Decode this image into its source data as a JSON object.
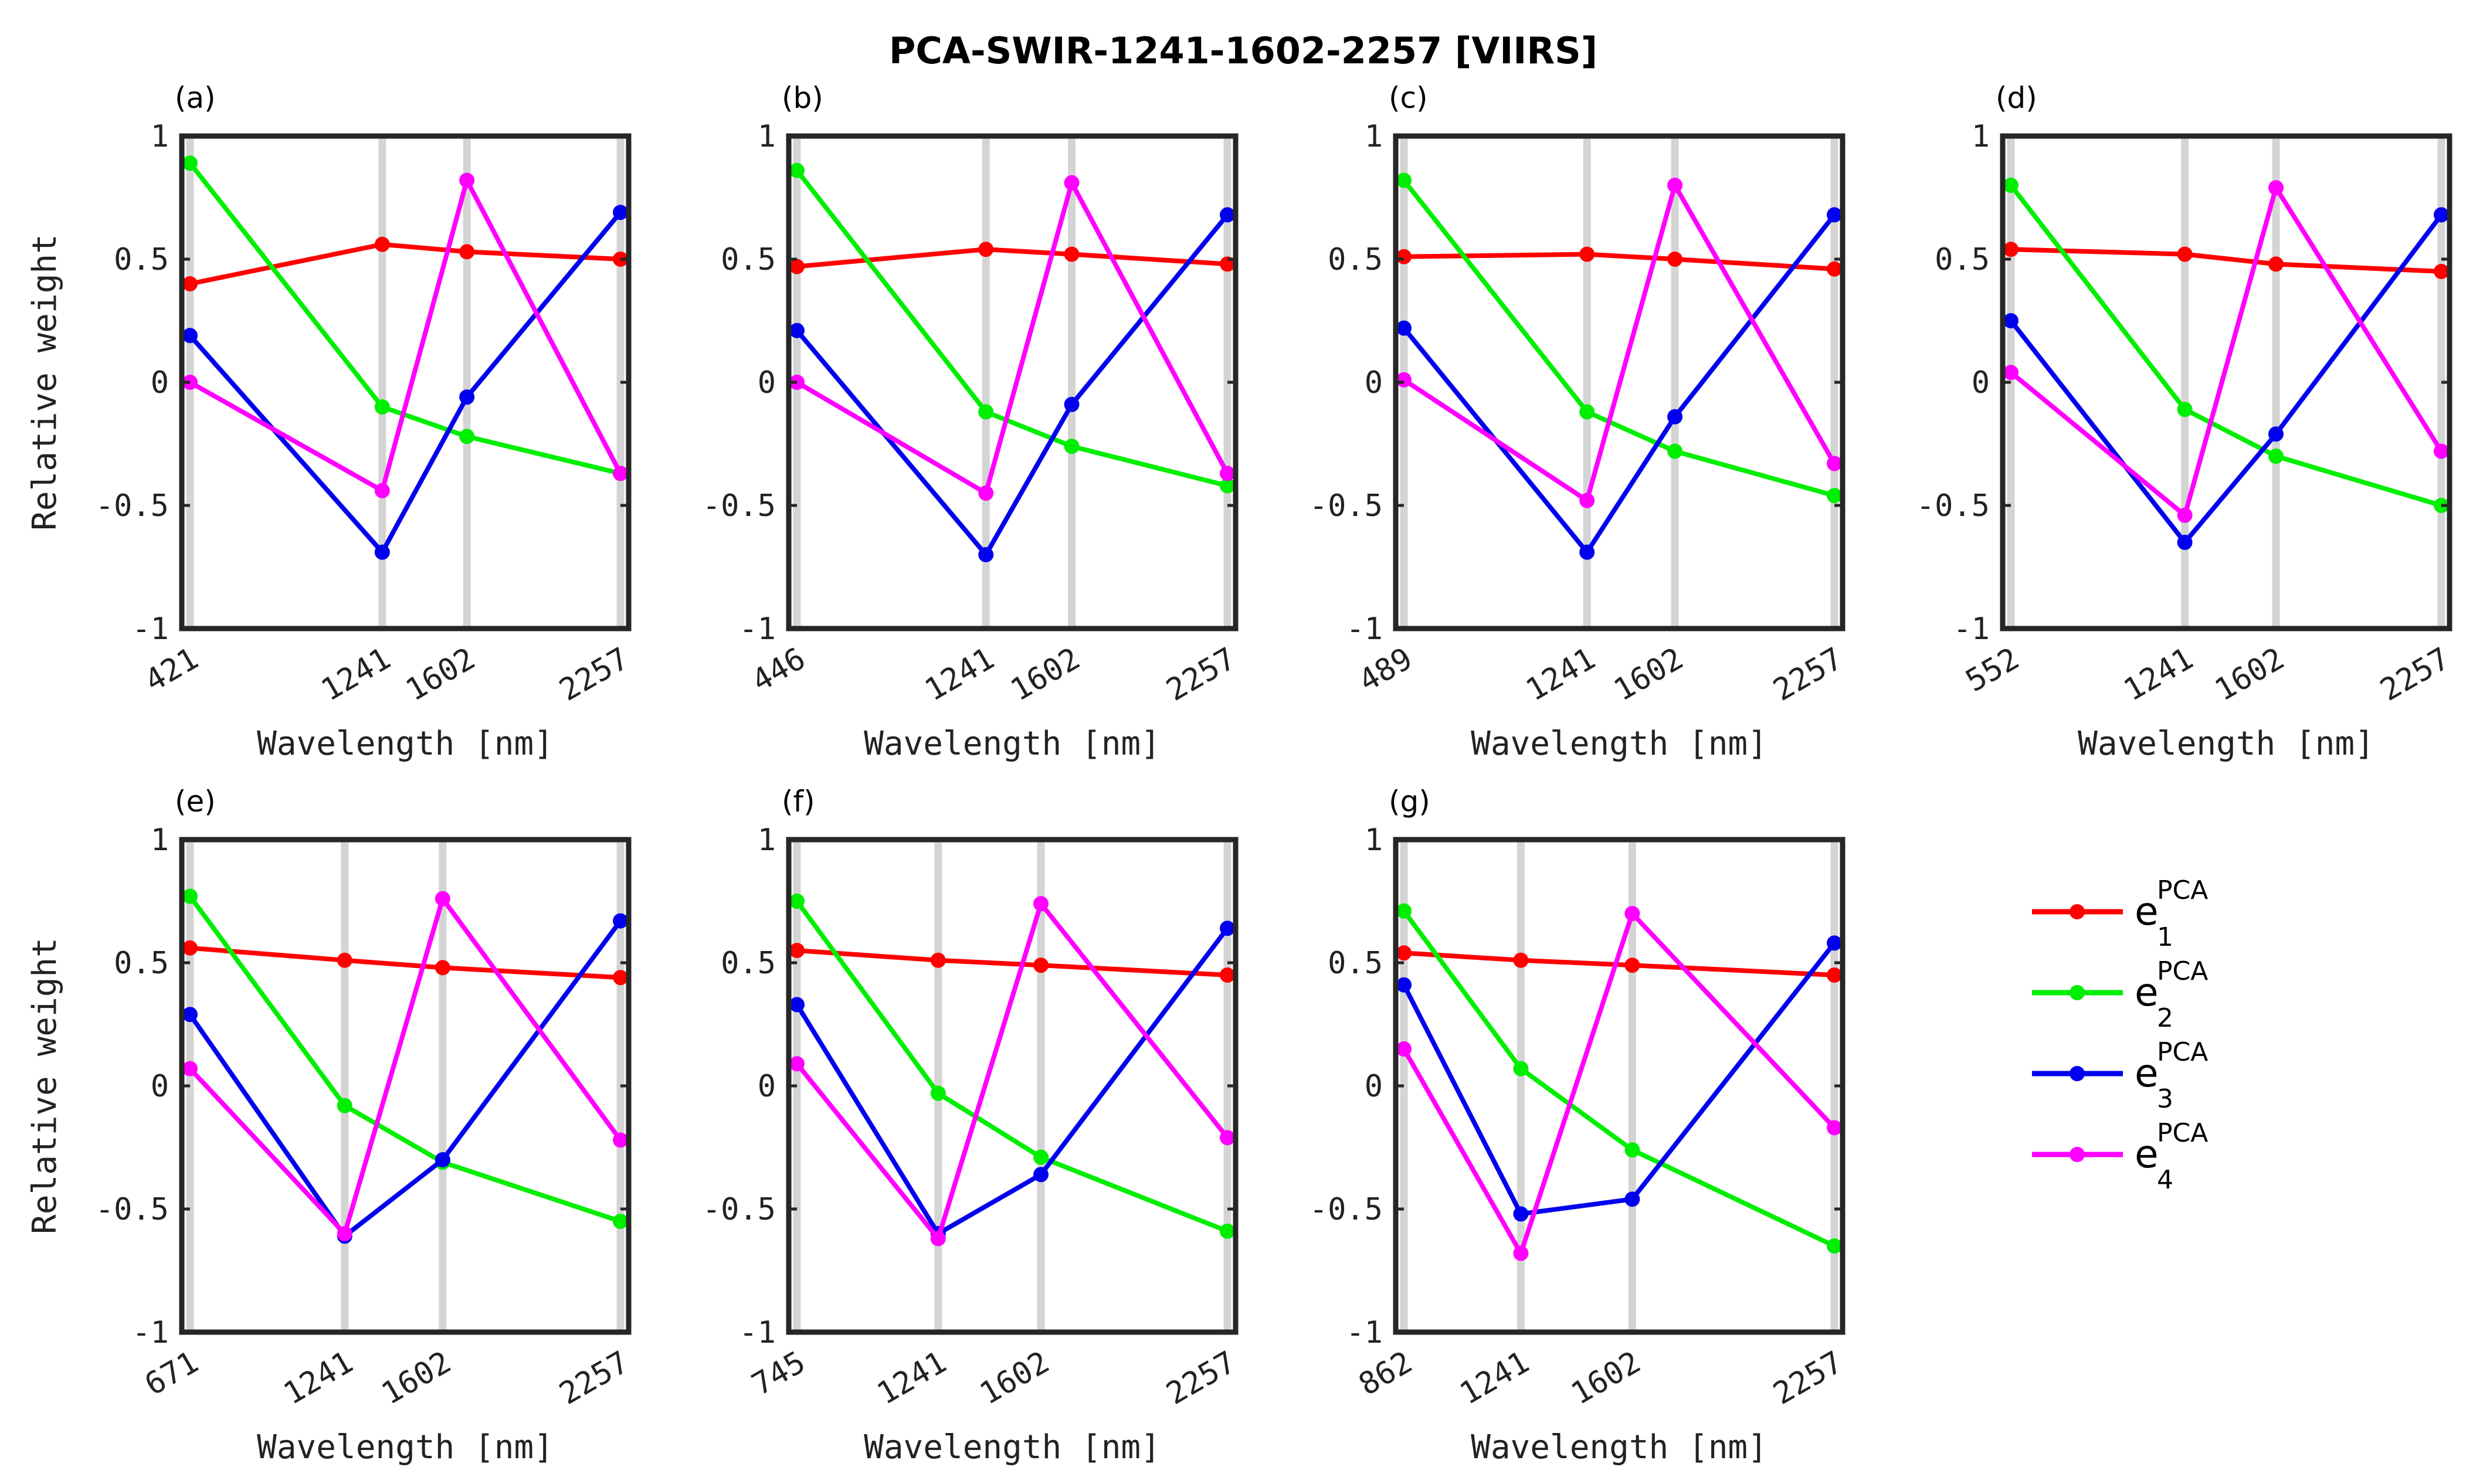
{
  "title": "PCA-SWIR-1241-1602-2257 [VIIRS]",
  "legend": [
    {
      "base": "e",
      "sub": "1",
      "sup": "PCA",
      "color": "#ff0000"
    },
    {
      "base": "e",
      "sub": "2",
      "sup": "PCA",
      "color": "#00ee00"
    },
    {
      "base": "e",
      "sub": "3",
      "sup": "PCA",
      "color": "#0000ee"
    },
    {
      "base": "e",
      "sub": "4",
      "sup": "PCA",
      "color": "#ff00ff"
    }
  ],
  "chart_data": [
    {
      "type": "line",
      "label": "(a)",
      "xlabel": "Wavelength [nm]",
      "ylabel": "Relative weight",
      "ylim": [
        -1,
        1
      ],
      "x": [
        421,
        1241,
        1602,
        2257
      ],
      "xticks": [
        "421",
        "1241",
        "1602",
        "2257"
      ],
      "yticks": [
        "1",
        "0.5",
        "0",
        "-0.5",
        "-1"
      ],
      "series": [
        {
          "name": "e1",
          "color": "#ff0000",
          "values": [
            0.4,
            0.56,
            0.53,
            0.5
          ]
        },
        {
          "name": "e2",
          "color": "#00ee00",
          "values": [
            0.89,
            -0.1,
            -0.22,
            -0.37
          ]
        },
        {
          "name": "e3",
          "color": "#0000ee",
          "values": [
            0.19,
            -0.69,
            -0.06,
            0.69
          ]
        },
        {
          "name": "e4",
          "color": "#ff00ff",
          "values": [
            0.0,
            -0.44,
            0.82,
            -0.37
          ]
        }
      ]
    },
    {
      "type": "line",
      "label": "(b)",
      "xlabel": "Wavelength [nm]",
      "ylabel": "",
      "ylim": [
        -1,
        1
      ],
      "x": [
        446,
        1241,
        1602,
        2257
      ],
      "xticks": [
        "446",
        "1241",
        "1602",
        "2257"
      ],
      "yticks": [
        "1",
        "0.5",
        "0",
        "-0.5",
        "-1"
      ],
      "series": [
        {
          "name": "e1",
          "color": "#ff0000",
          "values": [
            0.47,
            0.54,
            0.52,
            0.48
          ]
        },
        {
          "name": "e2",
          "color": "#00ee00",
          "values": [
            0.86,
            -0.12,
            -0.26,
            -0.42
          ]
        },
        {
          "name": "e3",
          "color": "#0000ee",
          "values": [
            0.21,
            -0.7,
            -0.09,
            0.68
          ]
        },
        {
          "name": "e4",
          "color": "#ff00ff",
          "values": [
            0.0,
            -0.45,
            0.81,
            -0.37
          ]
        }
      ]
    },
    {
      "type": "line",
      "label": "(c)",
      "xlabel": "Wavelength [nm]",
      "ylabel": "",
      "ylim": [
        -1,
        1
      ],
      "x": [
        489,
        1241,
        1602,
        2257
      ],
      "xticks": [
        "489",
        "1241",
        "1602",
        "2257"
      ],
      "yticks": [
        "1",
        "0.5",
        "0",
        "-0.5",
        "-1"
      ],
      "series": [
        {
          "name": "e1",
          "color": "#ff0000",
          "values": [
            0.51,
            0.52,
            0.5,
            0.46
          ]
        },
        {
          "name": "e2",
          "color": "#00ee00",
          "values": [
            0.82,
            -0.12,
            -0.28,
            -0.46
          ]
        },
        {
          "name": "e3",
          "color": "#0000ee",
          "values": [
            0.22,
            -0.69,
            -0.14,
            0.68
          ]
        },
        {
          "name": "e4",
          "color": "#ff00ff",
          "values": [
            0.01,
            -0.48,
            0.8,
            -0.33
          ]
        }
      ]
    },
    {
      "type": "line",
      "label": "(d)",
      "xlabel": "Wavelength [nm]",
      "ylabel": "",
      "ylim": [
        -1,
        1
      ],
      "x": [
        552,
        1241,
        1602,
        2257
      ],
      "xticks": [
        "552",
        "1241",
        "1602",
        "2257"
      ],
      "yticks": [
        "1",
        "0.5",
        "0",
        "-0.5",
        "-1"
      ],
      "series": [
        {
          "name": "e1",
          "color": "#ff0000",
          "values": [
            0.54,
            0.52,
            0.48,
            0.45
          ]
        },
        {
          "name": "e2",
          "color": "#00ee00",
          "values": [
            0.8,
            -0.11,
            -0.3,
            -0.5
          ]
        },
        {
          "name": "e3",
          "color": "#0000ee",
          "values": [
            0.25,
            -0.65,
            -0.21,
            0.68
          ]
        },
        {
          "name": "e4",
          "color": "#ff00ff",
          "values": [
            0.04,
            -0.54,
            0.79,
            -0.28
          ]
        }
      ]
    },
    {
      "type": "line",
      "label": "(e)",
      "xlabel": "Wavelength [nm]",
      "ylabel": "Relative weight",
      "ylim": [
        -1,
        1
      ],
      "x": [
        671,
        1241,
        1602,
        2257
      ],
      "xticks": [
        "671",
        "1241",
        "1602",
        "2257"
      ],
      "yticks": [
        "1",
        "0.5",
        "0",
        "-0.5",
        "-1"
      ],
      "series": [
        {
          "name": "e1",
          "color": "#ff0000",
          "values": [
            0.56,
            0.51,
            0.48,
            0.44
          ]
        },
        {
          "name": "e2",
          "color": "#00ee00",
          "values": [
            0.77,
            -0.08,
            -0.31,
            -0.55
          ]
        },
        {
          "name": "e3",
          "color": "#0000ee",
          "values": [
            0.29,
            -0.61,
            -0.3,
            0.67
          ]
        },
        {
          "name": "e4",
          "color": "#ff00ff",
          "values": [
            0.07,
            -0.6,
            0.76,
            -0.22
          ]
        }
      ]
    },
    {
      "type": "line",
      "label": "(f)",
      "xlabel": "Wavelength [nm]",
      "ylabel": "",
      "ylim": [
        -1,
        1
      ],
      "x": [
        745,
        1241,
        1602,
        2257
      ],
      "xticks": [
        "745",
        "1241",
        "1602",
        "2257"
      ],
      "yticks": [
        "1",
        "0.5",
        "0",
        "-0.5",
        "-1"
      ],
      "series": [
        {
          "name": "e1",
          "color": "#ff0000",
          "values": [
            0.55,
            0.51,
            0.49,
            0.45
          ]
        },
        {
          "name": "e2",
          "color": "#00ee00",
          "values": [
            0.75,
            -0.03,
            -0.29,
            -0.59
          ]
        },
        {
          "name": "e3",
          "color": "#0000ee",
          "values": [
            0.33,
            -0.6,
            -0.36,
            0.64
          ]
        },
        {
          "name": "e4",
          "color": "#ff00ff",
          "values": [
            0.09,
            -0.62,
            0.74,
            -0.21
          ]
        }
      ]
    },
    {
      "type": "line",
      "label": "(g)",
      "xlabel": "Wavelength [nm]",
      "ylabel": "",
      "ylim": [
        -1,
        1
      ],
      "x": [
        862,
        1241,
        1602,
        2257
      ],
      "xticks": [
        "862",
        "1241",
        "1602",
        "2257"
      ],
      "yticks": [
        "1",
        "0.5",
        "0",
        "-0.5",
        "-1"
      ],
      "series": [
        {
          "name": "e1",
          "color": "#ff0000",
          "values": [
            0.54,
            0.51,
            0.49,
            0.45
          ]
        },
        {
          "name": "e2",
          "color": "#00ee00",
          "values": [
            0.71,
            0.07,
            -0.26,
            -0.65
          ]
        },
        {
          "name": "e3",
          "color": "#0000ee",
          "values": [
            0.41,
            -0.52,
            -0.46,
            0.58
          ]
        },
        {
          "name": "e4",
          "color": "#ff00ff",
          "values": [
            0.15,
            -0.68,
            0.7,
            -0.17
          ]
        }
      ]
    }
  ]
}
